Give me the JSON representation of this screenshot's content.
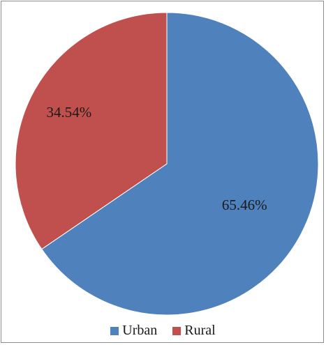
{
  "chart_data": {
    "type": "pie",
    "title": "",
    "categories": [
      "Urban",
      "Rural"
    ],
    "values": [
      65.46,
      34.54
    ],
    "labels": [
      "65.46%",
      "34.54%"
    ],
    "colors": [
      "#4f81bd",
      "#c0504d"
    ],
    "start_angle_deg": 0,
    "direction": "clockwise",
    "legend_position": "bottom"
  }
}
